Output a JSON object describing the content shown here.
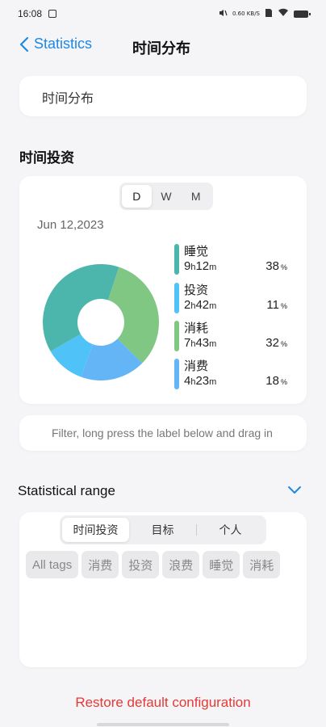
{
  "status": {
    "time": "16:08",
    "net_speed": "0.60\nKB/S"
  },
  "nav": {
    "back_label": "Statistics",
    "title": "时间分布"
  },
  "title_card": {
    "text": "时间分布"
  },
  "section_time": {
    "label": "时间投资"
  },
  "chart": {
    "segments": [
      "D",
      "W",
      "M"
    ],
    "active_segment": "D",
    "date": "Jun 12,2023",
    "unit_h": "h",
    "unit_m": "m",
    "pct_sign": "%"
  },
  "chart_data": {
    "type": "pie",
    "series": [
      {
        "name": "睡觉",
        "hours": "9",
        "minutes": "12",
        "percent": 38,
        "color": "#4db6ac"
      },
      {
        "name": "投资",
        "hours": "2",
        "minutes": "42",
        "percent": 11,
        "color": "#4fc3f7"
      },
      {
        "name": "消耗",
        "hours": "7",
        "minutes": "43",
        "percent": 32,
        "color": "#81c784"
      },
      {
        "name": "消费",
        "hours": "4",
        "minutes": "23",
        "percent": 18,
        "color": "#64b5f6"
      }
    ]
  },
  "filter": {
    "hint": "Filter, long press the label below and drag in"
  },
  "range": {
    "label": "Statistical range",
    "tabs": [
      "时间投资",
      "目标",
      "个人"
    ],
    "active_tab": 0,
    "chips": [
      "All tags",
      "消费",
      "投资",
      "浪费",
      "睡觉",
      "消耗"
    ]
  },
  "footer": {
    "restore_label": "Restore default configuration"
  },
  "colors": {
    "accent": "#1e88e5",
    "danger": "#e53935"
  }
}
